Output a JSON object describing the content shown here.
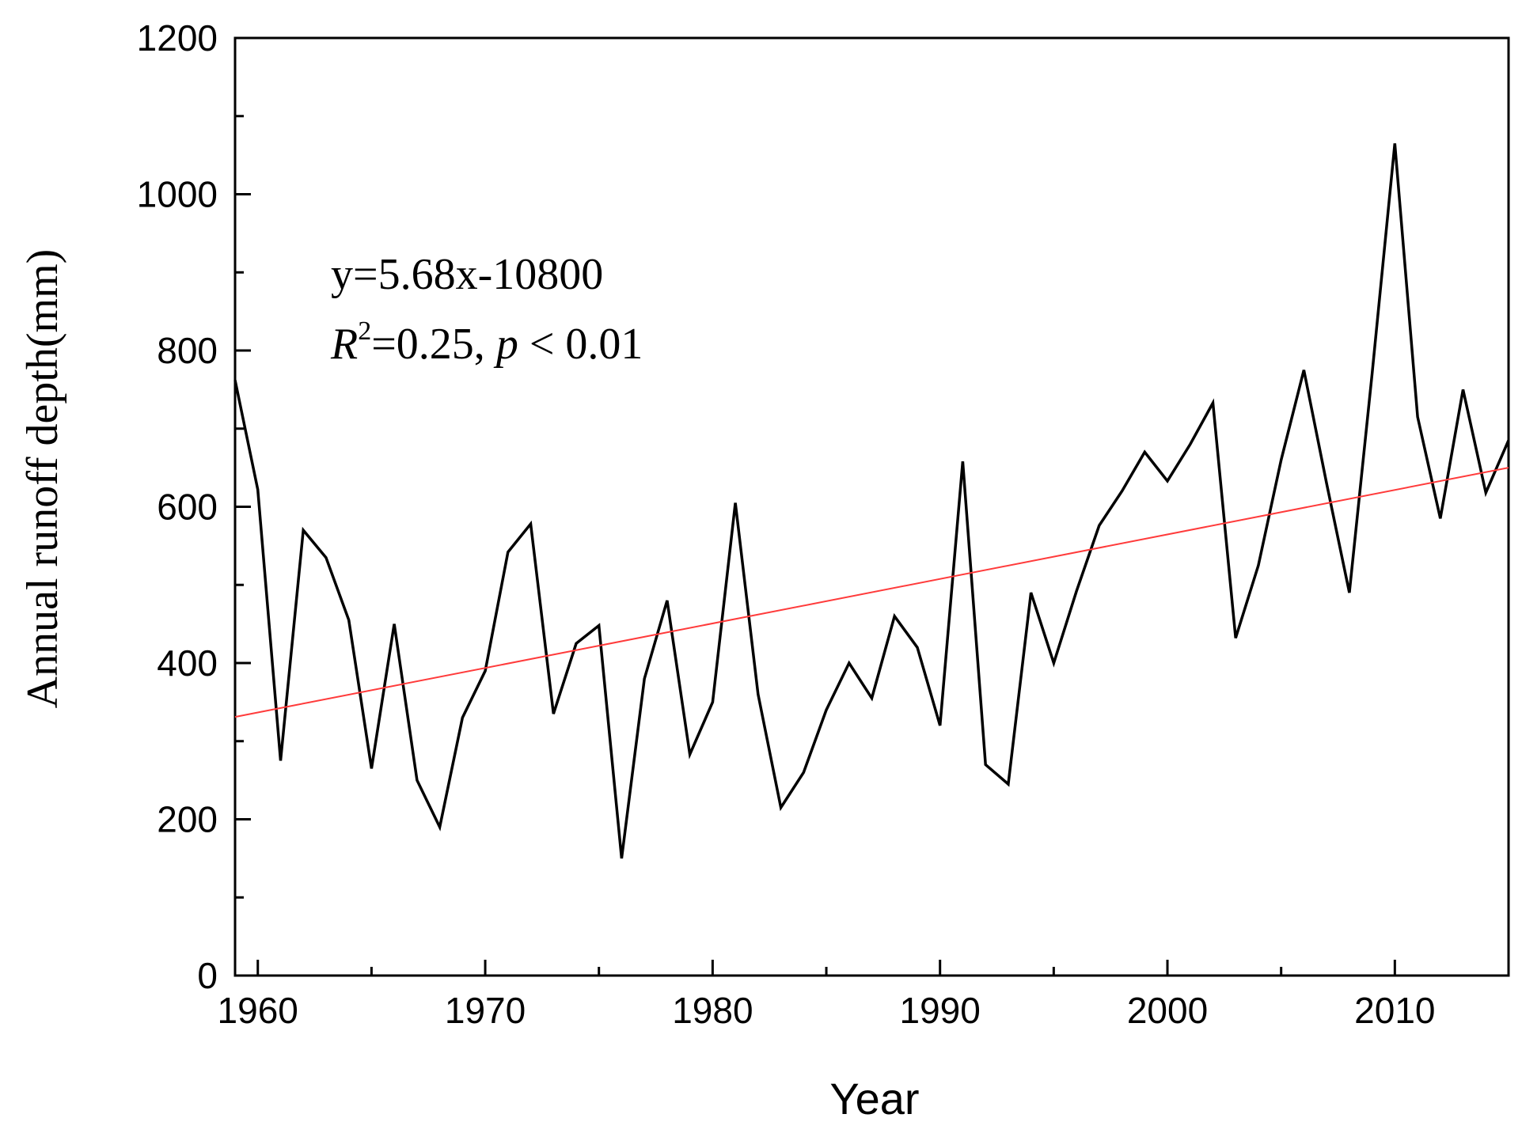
{
  "chart_data": {
    "type": "line",
    "title": "",
    "xlabel": "Year",
    "ylabel": "Annual runoff depth(mm)",
    "xlim": [
      1959,
      2015
    ],
    "ylim": [
      0,
      1200
    ],
    "xticks": [
      1960,
      1970,
      1980,
      1990,
      2000,
      2010
    ],
    "xtick_labels": [
      "1960",
      "1970",
      "1980",
      "1990",
      "2000",
      "2010"
    ],
    "yticks": [
      0,
      200,
      400,
      600,
      800,
      1000,
      1200
    ],
    "ytick_labels": [
      "0",
      "200",
      "400",
      "600",
      "800",
      "1000",
      "1200"
    ],
    "grid": false,
    "series": [
      {
        "name": "Annual runoff depth",
        "color": "#000000",
        "x": [
          1959,
          1960,
          1961,
          1962,
          1963,
          1964,
          1965,
          1966,
          1967,
          1968,
          1969,
          1970,
          1971,
          1972,
          1973,
          1974,
          1975,
          1976,
          1977,
          1978,
          1979,
          1980,
          1981,
          1982,
          1983,
          1984,
          1985,
          1986,
          1987,
          1988,
          1989,
          1990,
          1991,
          1992,
          1993,
          1994,
          1995,
          1996,
          1997,
          1998,
          1999,
          2000,
          2001,
          2002,
          2003,
          2004,
          2005,
          2006,
          2007,
          2008,
          2009,
          2010,
          2011,
          2012,
          2013,
          2014,
          2015
        ],
        "values": [
          762,
          622,
          275,
          570,
          535,
          455,
          265,
          450,
          250,
          190,
          330,
          390,
          542,
          578,
          335,
          425,
          448,
          150,
          380,
          480,
          283,
          350,
          605,
          360,
          215,
          260,
          340,
          400,
          355,
          460,
          420,
          320,
          658,
          270,
          245,
          490,
          400,
          492,
          576,
          620,
          670,
          633,
          680,
          733,
          432,
          525,
          660,
          775,
          630,
          490,
          770,
          1065,
          715,
          585,
          750,
          618,
          685
        ]
      },
      {
        "name": "Linear fit",
        "color": "#ff3b3b",
        "x": [
          1959,
          2015
        ],
        "values": [
          331,
          650
        ]
      }
    ],
    "annotations": {
      "equation": "y=5.68x-10800",
      "r2_symbol": "R",
      "r2_exponent": "2",
      "r2_text": "=0.25, ",
      "p_symbol": "p",
      "p_text": " < 0.01"
    }
  }
}
